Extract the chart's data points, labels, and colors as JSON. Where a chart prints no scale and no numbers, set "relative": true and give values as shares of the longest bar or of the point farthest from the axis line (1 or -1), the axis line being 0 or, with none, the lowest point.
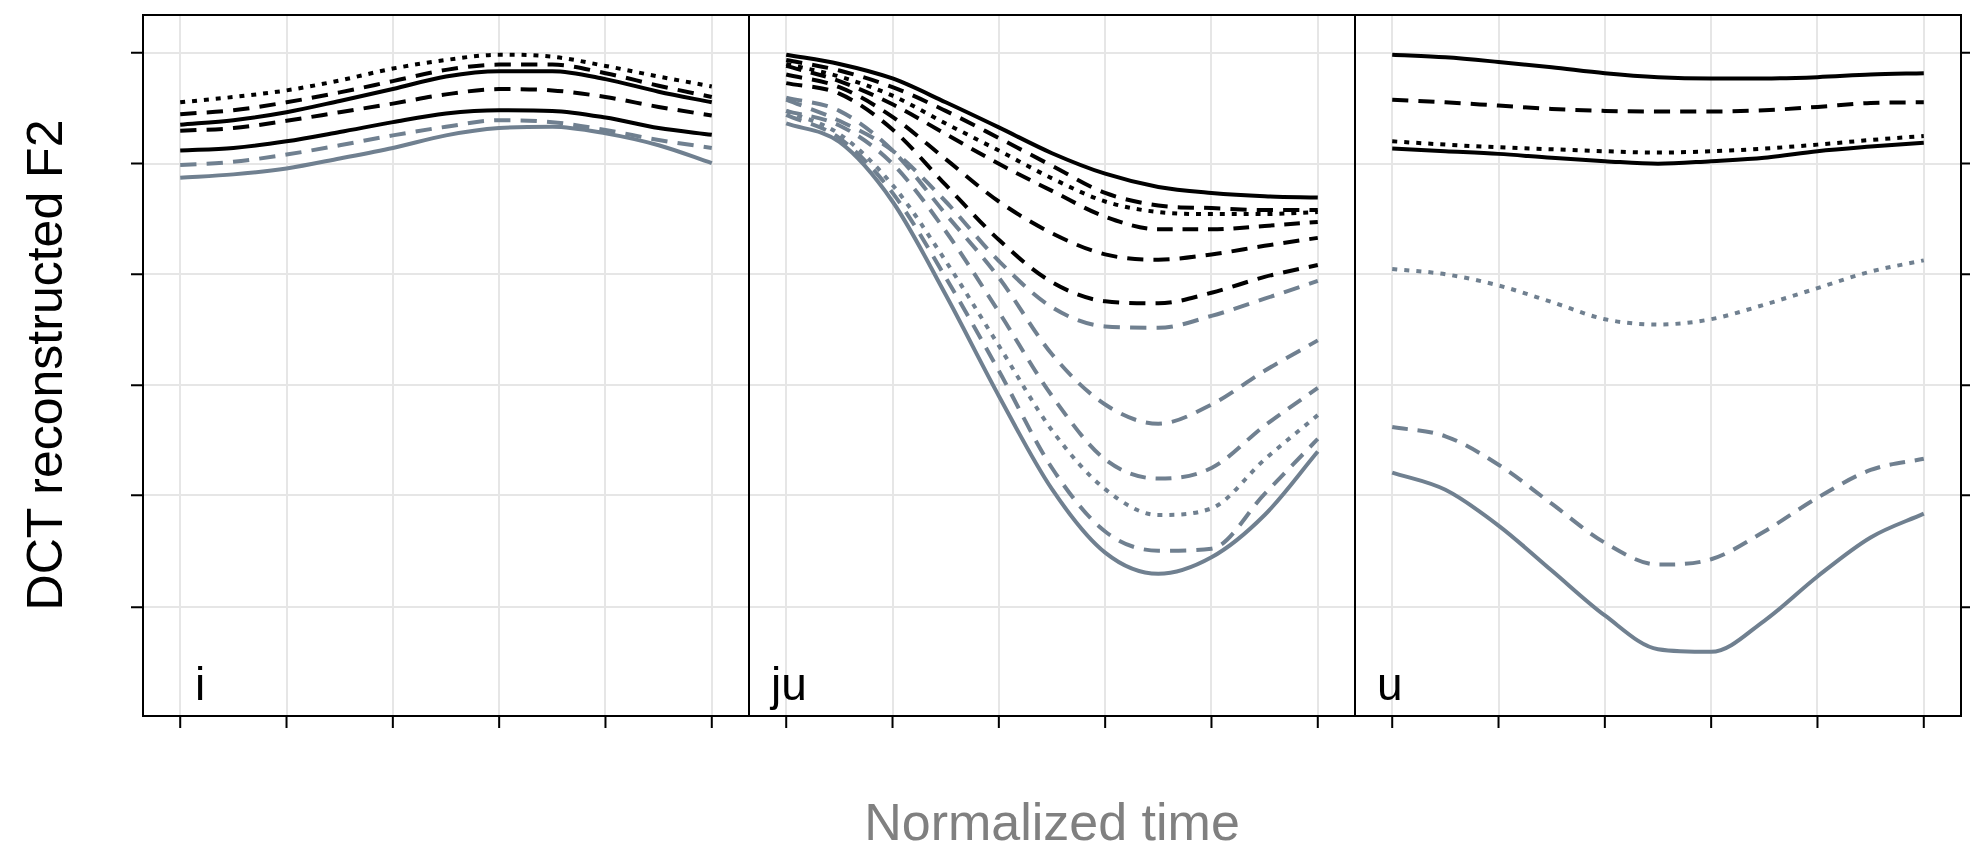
{
  "chart_data": [
    {
      "type": "line",
      "title": "i",
      "ylabel": "DCT reconstructed F2",
      "relative": true,
      "grid": true,
      "tick_labels": false,
      "marker": "none",
      "categories": [
        null,
        null,
        null,
        null,
        null,
        null,
        null,
        null,
        null,
        null,
        null
      ],
      "series": [
        {
          "color": "#000000",
          "line_style": "dotted",
          "values": [
            0.928,
            0.936,
            0.946,
            0.961,
            0.979,
            0.992,
            1.0,
            0.997,
            0.983,
            0.967,
            0.952
          ]
        },
        {
          "color": "#000000",
          "line_style": "dashed",
          "values": [
            0.91,
            0.916,
            0.928,
            0.943,
            0.96,
            0.977,
            0.985,
            0.985,
            0.972,
            0.953,
            0.936
          ]
        },
        {
          "color": "#000000",
          "line_style": "solid",
          "values": [
            0.894,
            0.901,
            0.913,
            0.93,
            0.948,
            0.967,
            0.975,
            0.975,
            0.963,
            0.944,
            0.928
          ]
        },
        {
          "color": "#000000",
          "line_style": "dashed",
          "values": [
            0.885,
            0.889,
            0.9,
            0.913,
            0.926,
            0.94,
            0.948,
            0.946,
            0.936,
            0.921,
            0.908
          ]
        },
        {
          "color": "#000000",
          "line_style": "solid",
          "values": [
            0.855,
            0.859,
            0.869,
            0.883,
            0.898,
            0.911,
            0.916,
            0.915,
            0.905,
            0.889,
            0.879
          ]
        },
        {
          "color": "#708090",
          "line_style": "dashed",
          "values": [
            0.833,
            0.838,
            0.849,
            0.863,
            0.878,
            0.891,
            0.901,
            0.898,
            0.886,
            0.871,
            0.859
          ]
        },
        {
          "color": "#708090",
          "line_style": "solid",
          "values": [
            0.814,
            0.819,
            0.828,
            0.843,
            0.859,
            0.878,
            0.889,
            0.891,
            0.881,
            0.863,
            0.836
          ]
        }
      ]
    },
    {
      "type": "line",
      "title": "ju",
      "xlabel": "Normalized time",
      "relative": true,
      "grid": true,
      "tick_labels": false,
      "marker": "none",
      "categories": [
        null,
        null,
        null,
        null,
        null,
        null,
        null,
        null,
        null,
        null,
        null
      ],
      "series": [
        {
          "color": "#000000",
          "line_style": "solid",
          "values": [
            1.0,
            0.986,
            0.964,
            0.928,
            0.89,
            0.851,
            0.82,
            0.8,
            0.791,
            0.786,
            0.784
          ]
        },
        {
          "color": "#000000",
          "line_style": "dashed",
          "values": [
            0.992,
            0.976,
            0.951,
            0.915,
            0.874,
            0.832,
            0.791,
            0.772,
            0.768,
            0.765,
            0.765
          ]
        },
        {
          "color": "#000000",
          "line_style": "dotted",
          "values": [
            0.986,
            0.967,
            0.938,
            0.896,
            0.855,
            0.813,
            0.778,
            0.762,
            0.759,
            0.759,
            0.762
          ]
        },
        {
          "color": "#000000",
          "line_style": "dashed",
          "values": [
            0.983,
            0.96,
            0.925,
            0.88,
            0.835,
            0.794,
            0.755,
            0.736,
            0.736,
            0.741,
            0.747
          ]
        },
        {
          "color": "#000000",
          "line_style": "dashed",
          "values": [
            0.97,
            0.951,
            0.906,
            0.842,
            0.778,
            0.73,
            0.698,
            0.69,
            0.698,
            0.711,
            0.723
          ]
        },
        {
          "color": "#000000",
          "line_style": "dashed",
          "values": [
            0.957,
            0.941,
            0.887,
            0.803,
            0.72,
            0.656,
            0.627,
            0.624,
            0.64,
            0.664,
            0.682
          ]
        },
        {
          "color": "#708090",
          "line_style": "dashed",
          "values": [
            0.932,
            0.9,
            0.855,
            0.778,
            0.688,
            0.618,
            0.589,
            0.587,
            0.605,
            0.631,
            0.658
          ]
        },
        {
          "color": "#708090",
          "line_style": "dashed",
          "values": [
            0.935,
            0.915,
            0.855,
            0.759,
            0.663,
            0.547,
            0.471,
            0.442,
            0.471,
            0.522,
            0.568
          ]
        },
        {
          "color": "#708090",
          "line_style": "dashed",
          "values": [
            0.915,
            0.893,
            0.835,
            0.733,
            0.611,
            0.484,
            0.388,
            0.359,
            0.375,
            0.439,
            0.496
          ]
        },
        {
          "color": "#708090",
          "line_style": "dotted",
          "values": [
            0.915,
            0.88,
            0.803,
            0.688,
            0.56,
            0.432,
            0.343,
            0.304,
            0.314,
            0.388,
            0.455
          ]
        },
        {
          "color": "#708090",
          "line_style": "dashed",
          "values": [
            0.909,
            0.874,
            0.791,
            0.663,
            0.522,
            0.375,
            0.279,
            0.25,
            0.253,
            0.336,
            0.419
          ]
        },
        {
          "color": "#708090",
          "line_style": "solid",
          "values": [
            0.896,
            0.868,
            0.778,
            0.637,
            0.484,
            0.343,
            0.247,
            0.215,
            0.24,
            0.304,
            0.4
          ]
        }
      ]
    },
    {
      "type": "line",
      "title": "u",
      "relative": true,
      "grid": true,
      "tick_labels": false,
      "marker": "none",
      "categories": [
        null,
        null,
        null,
        null,
        null,
        null,
        null,
        null,
        null,
        null,
        null
      ],
      "series": [
        {
          "color": "#000000",
          "line_style": "solid",
          "values": [
            1.0,
            0.996,
            0.989,
            0.981,
            0.972,
            0.966,
            0.964,
            0.964,
            0.966,
            0.97,
            0.972
          ]
        },
        {
          "color": "#000000",
          "line_style": "dashed",
          "values": [
            0.932,
            0.928,
            0.923,
            0.918,
            0.915,
            0.914,
            0.914,
            0.916,
            0.921,
            0.927,
            0.928
          ]
        },
        {
          "color": "#000000",
          "line_style": "dotted",
          "values": [
            0.869,
            0.864,
            0.86,
            0.857,
            0.854,
            0.852,
            0.854,
            0.858,
            0.864,
            0.871,
            0.877
          ]
        },
        {
          "color": "#000000",
          "line_style": "solid",
          "values": [
            0.858,
            0.854,
            0.85,
            0.844,
            0.839,
            0.835,
            0.839,
            0.844,
            0.854,
            0.861,
            0.867
          ]
        },
        {
          "color": "#708090",
          "line_style": "dotted",
          "values": [
            0.676,
            0.668,
            0.651,
            0.626,
            0.6,
            0.592,
            0.6,
            0.622,
            0.647,
            0.672,
            0.689
          ]
        },
        {
          "color": "#708090",
          "line_style": "dashed",
          "values": [
            0.437,
            0.423,
            0.38,
            0.321,
            0.262,
            0.229,
            0.237,
            0.279,
            0.33,
            0.372,
            0.389
          ]
        },
        {
          "color": "#708090",
          "line_style": "solid",
          "values": [
            0.368,
            0.342,
            0.288,
            0.22,
            0.152,
            0.101,
            0.097,
            0.144,
            0.211,
            0.27,
            0.306
          ]
        }
      ]
    }
  ]
}
